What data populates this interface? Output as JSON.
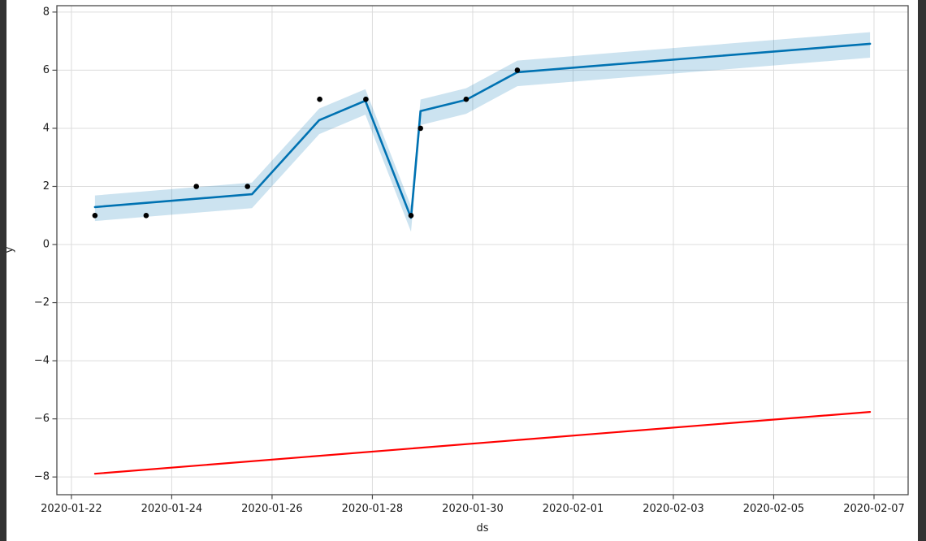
{
  "chart_data": {
    "type": "line",
    "title": "",
    "xlabel": "ds",
    "ylabel": "y",
    "grid": true,
    "legend": "none",
    "x_axis_unit": "days since 2020-01-22",
    "xlim_days": [
      -0.29,
      16.68
    ],
    "ylim": [
      -8.61,
      8.22
    ],
    "x_ticks": [
      {
        "day": 0,
        "label": "2020-01-22"
      },
      {
        "day": 2,
        "label": "2020-01-24"
      },
      {
        "day": 4,
        "label": "2020-01-26"
      },
      {
        "day": 6,
        "label": "2020-01-28"
      },
      {
        "day": 8,
        "label": "2020-01-30"
      },
      {
        "day": 10,
        "label": "2020-02-01"
      },
      {
        "day": 12,
        "label": "2020-02-03"
      },
      {
        "day": 14,
        "label": "2020-02-05"
      },
      {
        "day": 16,
        "label": "2020-02-07"
      }
    ],
    "y_ticks": [
      {
        "value": 8,
        "label": "8"
      },
      {
        "value": 6,
        "label": "6"
      },
      {
        "value": 4,
        "label": "4"
      },
      {
        "value": 2,
        "label": "2"
      },
      {
        "value": 0,
        "label": "0"
      },
      {
        "value": -2,
        "label": "−2"
      },
      {
        "value": -4,
        "label": "−4"
      },
      {
        "value": -6,
        "label": "−6"
      },
      {
        "value": -8,
        "label": "−8"
      }
    ],
    "series": [
      {
        "name": "observations",
        "kind": "scatter",
        "color": "#000000",
        "marker_radius": 3.3,
        "points": [
          [
            0.47,
            1
          ],
          [
            1.49,
            1
          ],
          [
            2.49,
            2
          ],
          [
            3.51,
            2
          ],
          [
            4.95,
            5
          ],
          [
            5.87,
            5
          ],
          [
            6.77,
            1
          ],
          [
            6.96,
            4
          ],
          [
            7.87,
            5
          ],
          [
            8.89,
            6
          ]
        ]
      },
      {
        "name": "forecast-yhat",
        "kind": "line",
        "color": "#0072b2",
        "width": 2.6,
        "points": [
          [
            0.47,
            1.29
          ],
          [
            3.6,
            1.73
          ],
          [
            4.94,
            4.28
          ],
          [
            5.86,
            4.95
          ],
          [
            6.77,
            0.92
          ],
          [
            6.96,
            4.59
          ],
          [
            7.87,
            4.98
          ],
          [
            8.89,
            5.93
          ],
          [
            15.92,
            6.91
          ]
        ]
      },
      {
        "name": "uncertainty-interval",
        "kind": "band",
        "base": "forecast-yhat",
        "color": "rgba(0,114,178,0.2)",
        "upper_offset": 0.4,
        "lower_offset": -0.48
      },
      {
        "name": "trend",
        "kind": "line",
        "color": "#ff0000",
        "width": 2.2,
        "points": [
          [
            0.47,
            -7.89
          ],
          [
            15.92,
            -5.76
          ]
        ]
      }
    ],
    "colors": {
      "grid": "#dcdcdc",
      "spine": "#4a4a4a",
      "tick": "#4a4a4a",
      "text": "#1a1a1a",
      "background": "#ffffff",
      "window_edge": "#333333"
    },
    "tick_font_size": 13
  }
}
